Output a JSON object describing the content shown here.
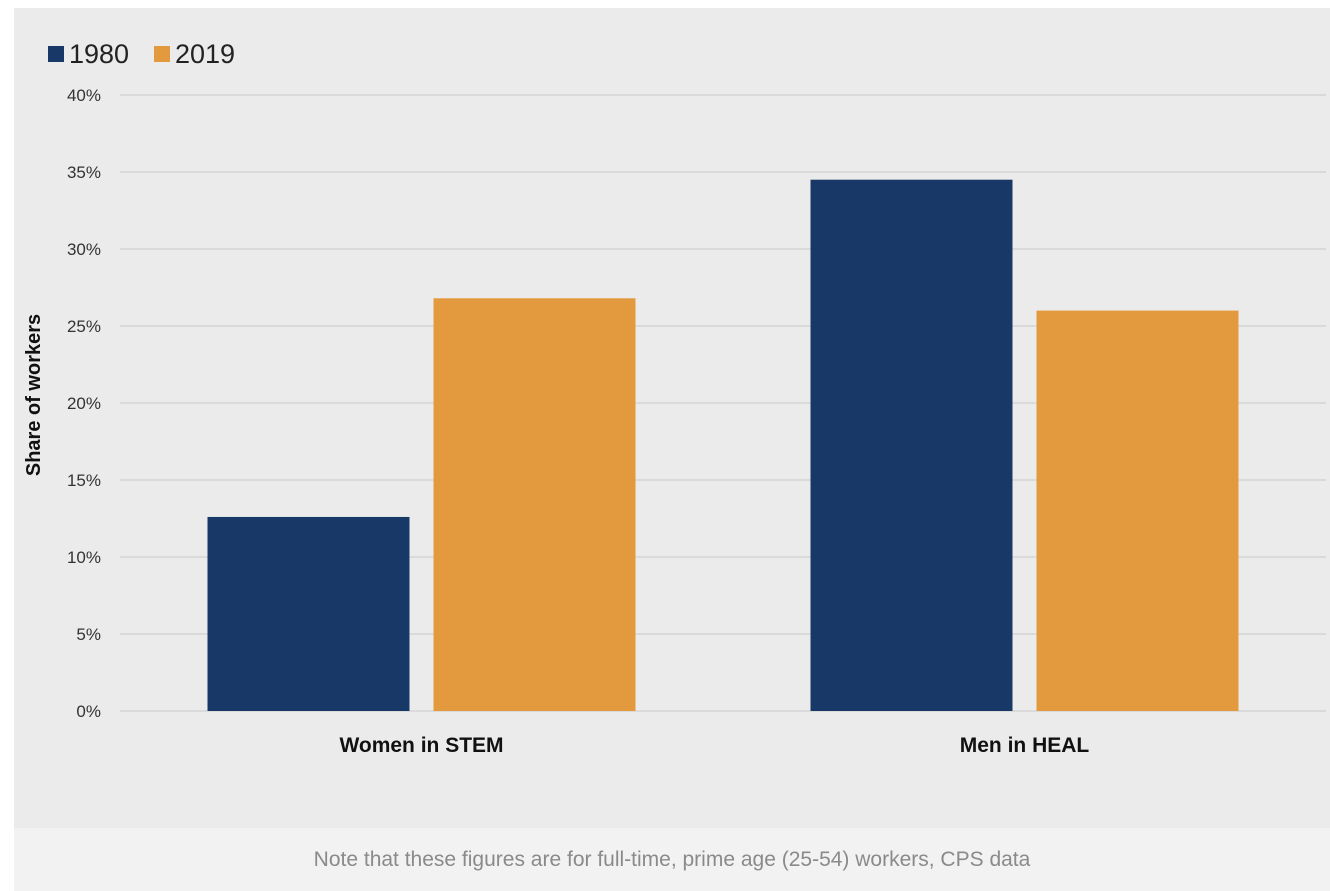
{
  "chart_data": {
    "type": "bar",
    "categories": [
      "Women in STEM",
      "Men in HEAL"
    ],
    "series": [
      {
        "name": "1980",
        "values": [
          12.6,
          34.5
        ],
        "color": "#183868"
      },
      {
        "name": "2019",
        "values": [
          26.8,
          26.0
        ],
        "color": "#e39a3e"
      }
    ],
    "xlabel": "",
    "ylabel": "Share of workers",
    "ylim": [
      0,
      40
    ],
    "yticks": [
      0,
      5,
      10,
      15,
      20,
      25,
      30,
      35,
      40
    ],
    "ytick_format": "{v}%",
    "grid": true,
    "legend_position": "top-left"
  },
  "caption": "Note that these figures are for full-time, prime age (25-54) workers, CPS data"
}
